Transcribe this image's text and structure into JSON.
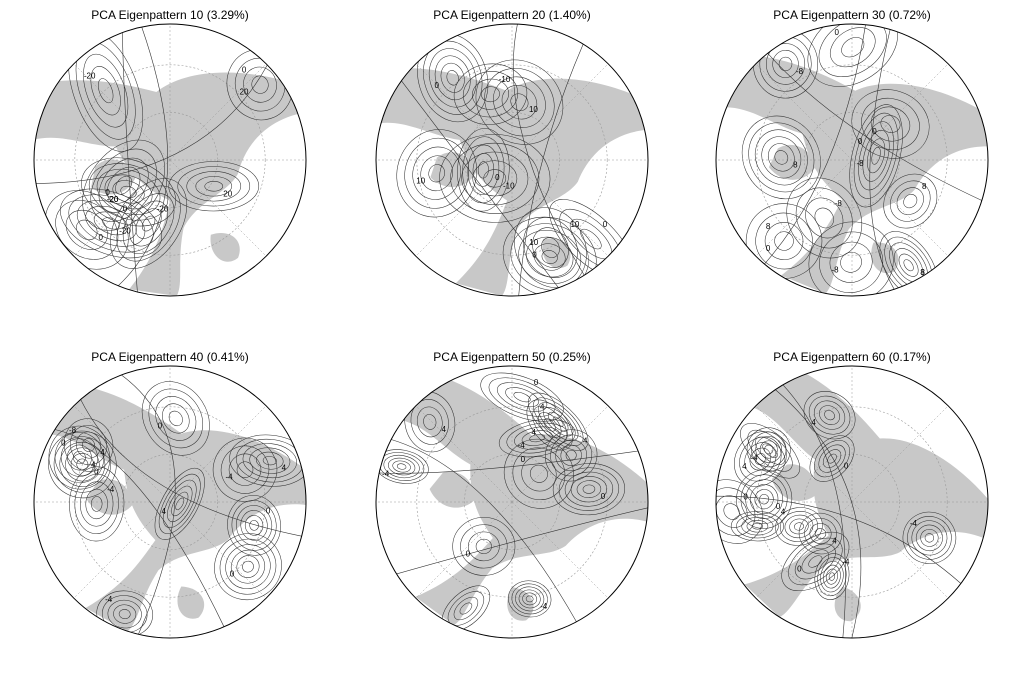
{
  "figure": {
    "panels": [
      {
        "title": "PCA Eigenpattern 10 (3.29%)",
        "contour_labels": [
          "0",
          "-20",
          "-20",
          "-20",
          "0",
          "20",
          "-20",
          "0",
          "20",
          "0",
          "-20"
        ]
      },
      {
        "title": "PCA Eigenpattern 20 (1.40%)",
        "contour_labels": [
          "10",
          "10",
          "0",
          "-10",
          "0",
          "-10",
          "10",
          "0",
          "10",
          "0"
        ]
      },
      {
        "title": "PCA Eigenpattern 30 (0.72%)",
        "contour_labels": [
          "8",
          "8",
          "-8",
          "8",
          "0",
          "-8",
          "0",
          "8",
          "-8",
          "-8",
          "0",
          "8",
          "0"
        ]
      },
      {
        "title": "PCA Eigenpattern 40 (0.41%)",
        "contour_labels": [
          "-8",
          "4",
          "0",
          "-4",
          "0",
          "4",
          "-4",
          "0",
          "4",
          "0",
          "-4",
          "4",
          "0"
        ]
      },
      {
        "title": "PCA Eigenpattern 50 (0.25%)",
        "contour_labels": [
          "4",
          "0",
          "-4",
          "4",
          "0",
          "-4",
          "0",
          "4",
          "-4",
          "0",
          "4"
        ]
      },
      {
        "title": "PCA Eigenpattern 60 (0.17%)",
        "contour_labels": [
          "-4",
          "4",
          "0",
          "-4",
          "4",
          "0",
          "4",
          "0",
          "-4",
          "0",
          "4"
        ]
      }
    ],
    "colors": {
      "land": "#c8c8c8",
      "contour": "#333333",
      "frame": "#000000",
      "grid": "#999999"
    }
  }
}
